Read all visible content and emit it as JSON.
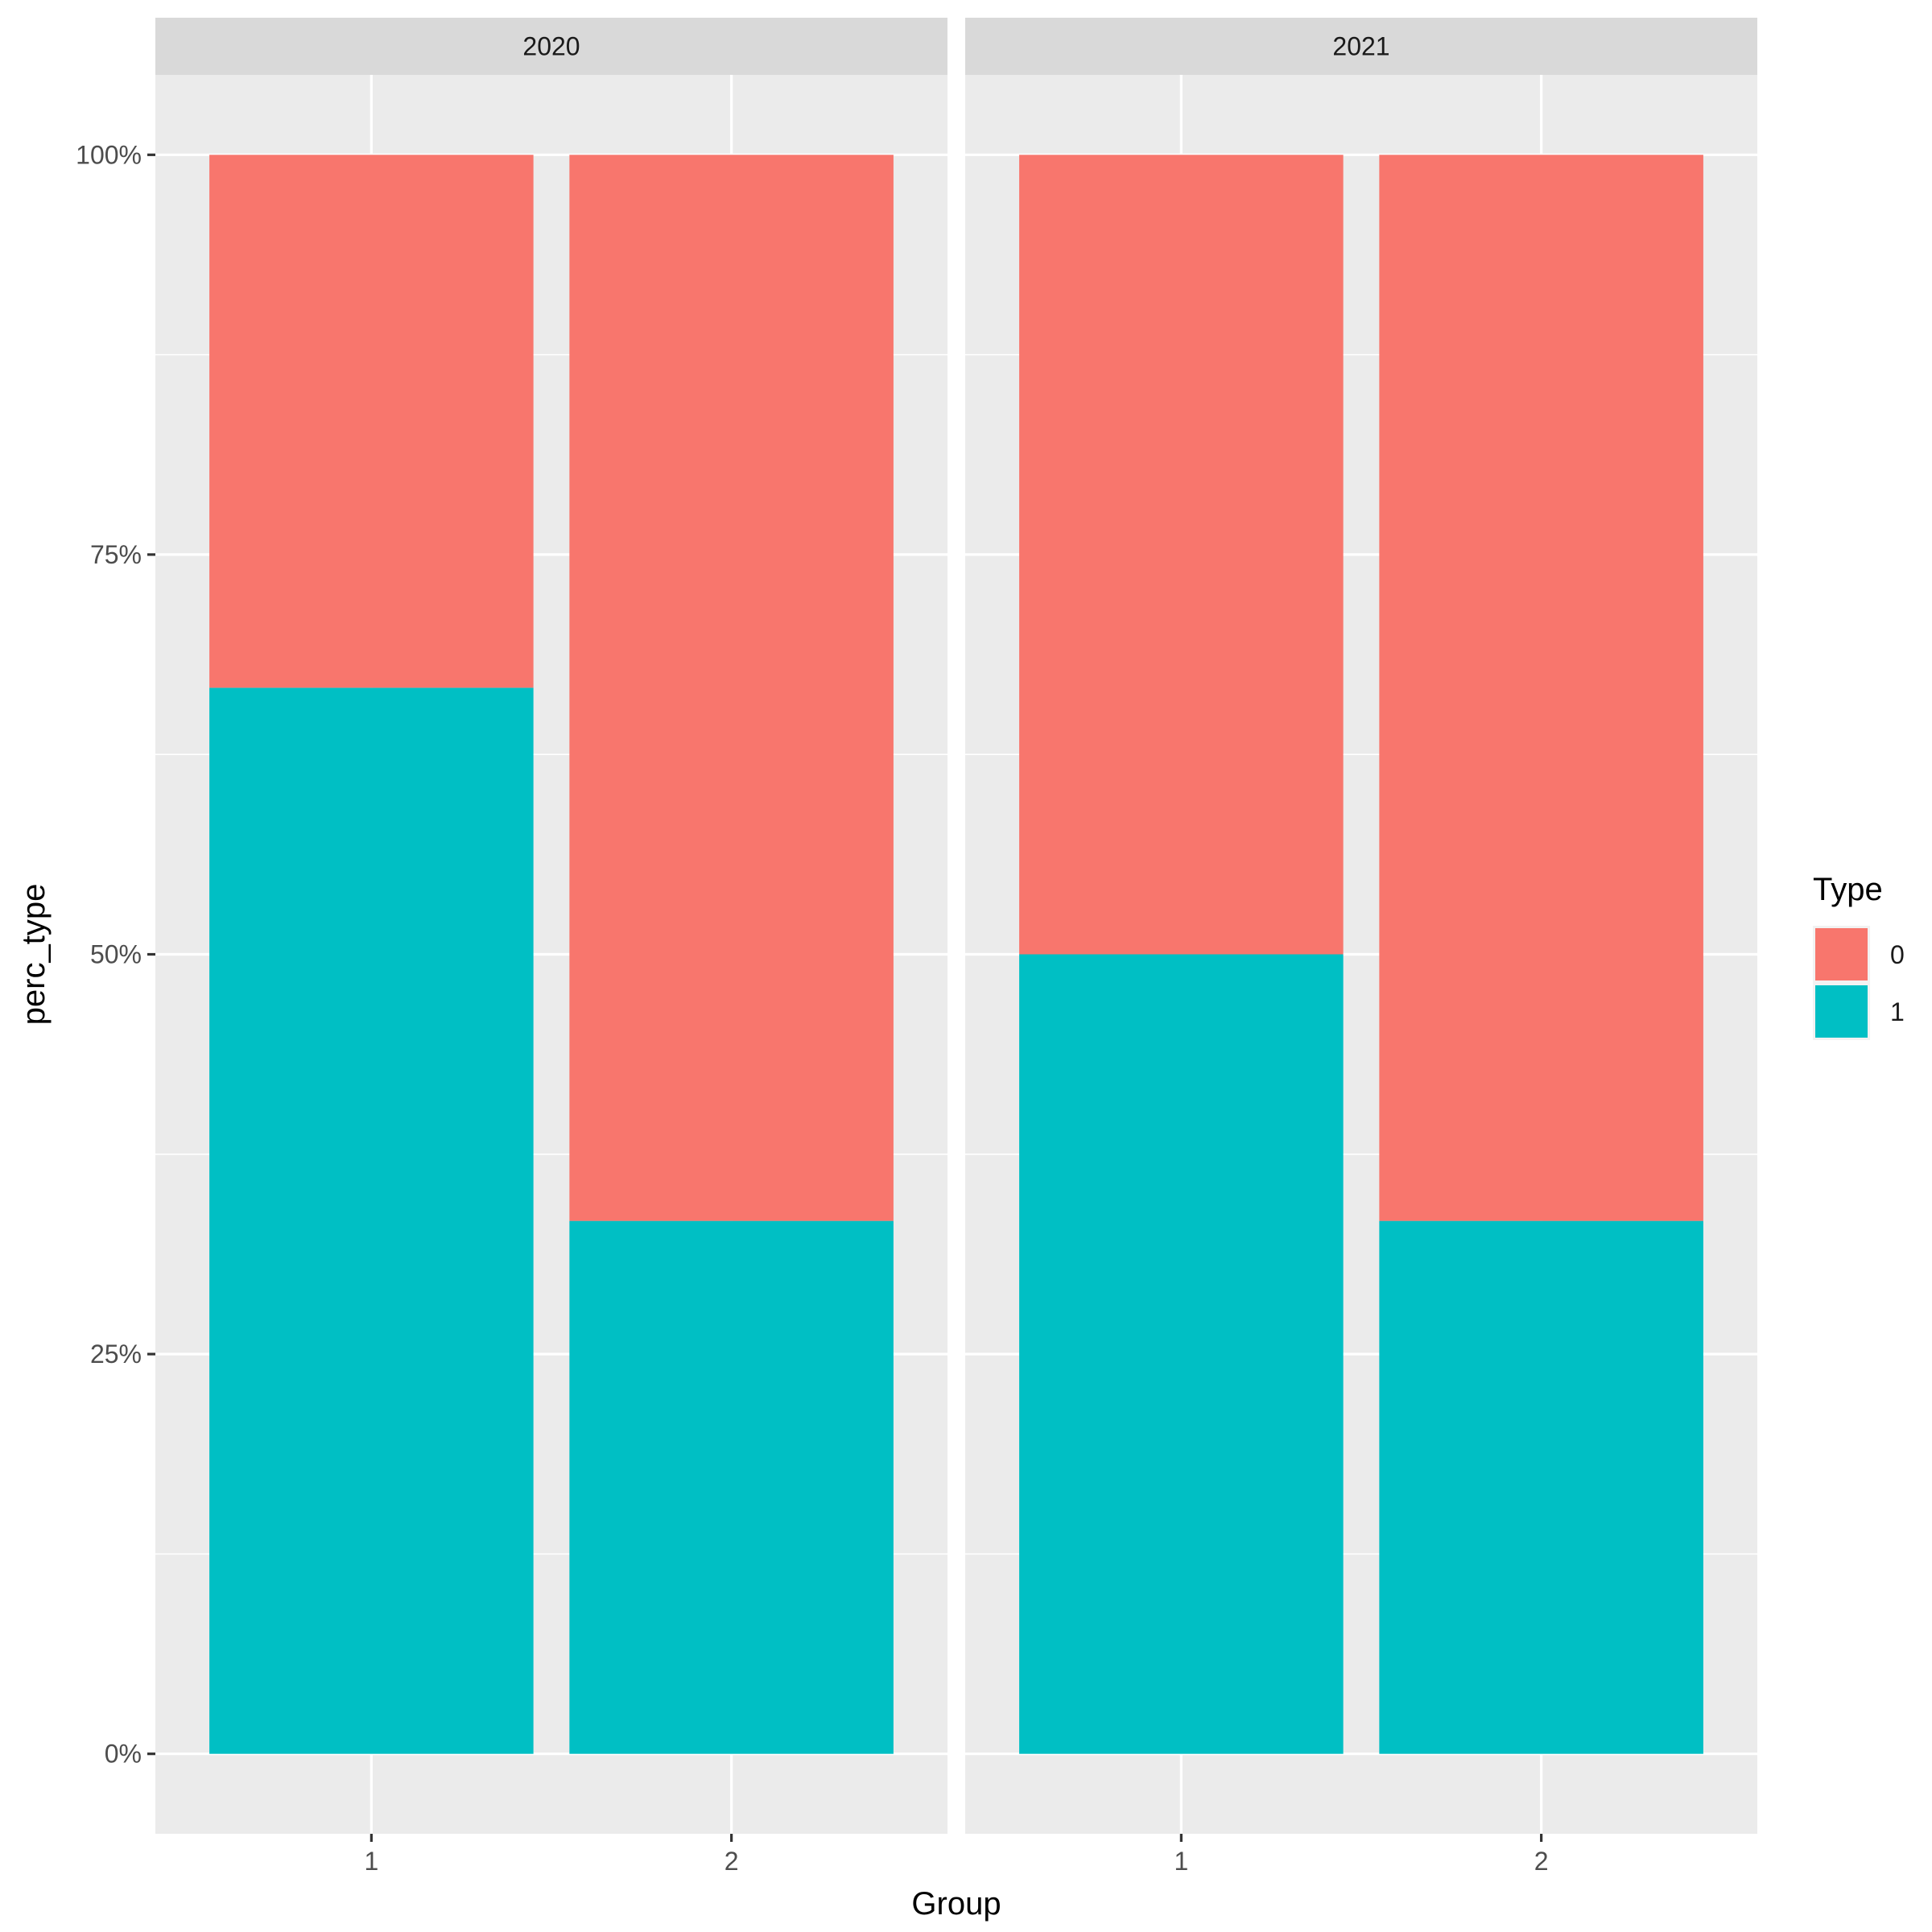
{
  "chart_data": {
    "type": "bar",
    "stacked": true,
    "position": "fill",
    "facet_variable": "year",
    "panels": [
      {
        "label": "2020",
        "categories": [
          "1",
          "2"
        ],
        "series": [
          {
            "name": "0",
            "values": [
              0.3333,
              0.6667
            ]
          },
          {
            "name": "1",
            "values": [
              0.6667,
              0.3333
            ]
          }
        ]
      },
      {
        "label": "2021",
        "categories": [
          "1",
          "2"
        ],
        "series": [
          {
            "name": "0",
            "values": [
              0.5,
              0.6667
            ]
          },
          {
            "name": "1",
            "values": [
              0.5,
              0.3333
            ]
          }
        ]
      }
    ],
    "xlabel": "Group",
    "ylabel": "perc_type",
    "ylim": [
      -0.05,
      1.05
    ],
    "yticks": [
      0,
      0.25,
      0.5,
      0.75,
      1
    ],
    "ytick_labels": [
      "0%",
      "25%",
      "50%",
      "75%",
      "100%"
    ],
    "grid": true,
    "legend": {
      "title": "Type",
      "position": "right",
      "entries": [
        {
          "name": "0",
          "color": "#F8766D"
        },
        {
          "name": "1",
          "color": "#00BFC4"
        }
      ]
    },
    "colors": {
      "panel_background": "#EBEBEB",
      "strip_background": "#D9D9D9",
      "grid": "#FFFFFF",
      "text": "#4D4D4D",
      "title_text": "#000000"
    }
  }
}
